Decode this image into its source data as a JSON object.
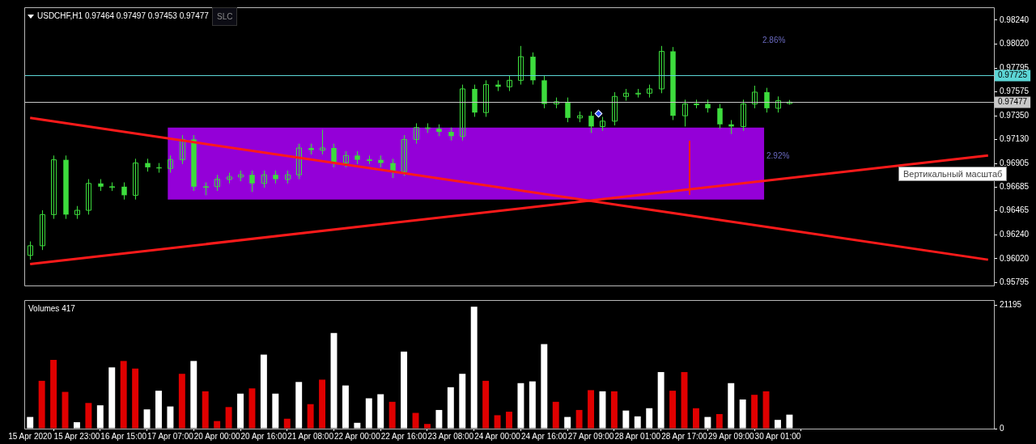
{
  "chart_data": [
    {
      "type": "candlestick",
      "title": "USDCHF,H1  0.97464 0.97497 0.97453 0.97477",
      "color": "#3ddc3d",
      "tick_labels": "y",
      "categories": [
        null,
        null,
        null,
        null,
        null,
        null,
        null,
        null,
        null,
        null,
        null,
        null,
        null,
        null,
        null,
        null,
        null,
        null,
        null,
        null,
        null,
        null,
        null,
        null,
        null,
        null,
        null,
        null,
        null,
        null,
        null,
        null,
        null,
        null,
        null,
        null,
        null,
        null,
        null,
        null,
        null,
        null,
        null,
        null,
        null,
        null,
        null,
        null,
        null,
        null,
        null,
        null,
        null,
        null,
        null,
        null,
        null,
        null,
        null,
        null,
        null,
        null,
        null,
        null,
        null,
        null,
        null,
        null,
        null,
        null,
        null,
        null,
        null,
        null,
        null,
        null,
        null,
        null,
        null,
        null,
        null,
        null,
        null
      ],
      "ohlc": [
        [
          0.9605,
          0.9618,
          0.9601,
          0.9614
        ],
        [
          0.9614,
          0.9647,
          0.961,
          0.9643
        ],
        [
          0.9643,
          0.9698,
          0.9639,
          0.9694
        ],
        [
          0.9694,
          0.9698,
          0.9639,
          0.9643
        ],
        [
          0.9643,
          0.9651,
          0.9639,
          0.9647
        ],
        [
          0.9647,
          0.9676,
          0.9643,
          0.9672
        ],
        [
          0.9672,
          0.9676,
          0.9665,
          0.9669
        ],
        [
          0.9669,
          0.9673,
          0.9665,
          0.9669
        ],
        [
          0.9669,
          0.9673,
          0.9657,
          0.9661
        ],
        [
          0.9661,
          0.9695,
          0.9657,
          0.9691
        ],
        [
          0.9691,
          0.9695,
          0.9683,
          0.9687
        ],
        [
          0.9687,
          0.9691,
          0.9682,
          0.9686
        ],
        [
          0.9686,
          0.9698,
          0.9682,
          0.9694
        ],
        [
          0.9694,
          0.9717,
          0.969,
          0.9713
        ],
        [
          0.9713,
          0.9717,
          0.9665,
          0.9669
        ],
        [
          0.9669,
          0.9673,
          0.9661,
          0.9669
        ],
        [
          0.9669,
          0.968,
          0.9665,
          0.9676
        ],
        [
          0.9676,
          0.9682,
          0.9672,
          0.9678
        ],
        [
          0.9678,
          0.9684,
          0.9674,
          0.968
        ],
        [
          0.968,
          0.9684,
          0.9664,
          0.9672
        ],
        [
          0.9672,
          0.9684,
          0.9668,
          0.968
        ],
        [
          0.968,
          0.9684,
          0.9672,
          0.9676
        ],
        [
          0.9676,
          0.9684,
          0.9672,
          0.968
        ],
        [
          0.968,
          0.9709,
          0.9676,
          0.9705
        ],
        [
          0.9705,
          0.9709,
          0.9699,
          0.9703
        ],
        [
          0.9703,
          0.9722,
          0.9699,
          0.9705
        ],
        [
          0.9705,
          0.9709,
          0.9687,
          0.9691
        ],
        [
          0.9691,
          0.9702,
          0.9687,
          0.9698
        ],
        [
          0.9698,
          0.9702,
          0.969,
          0.9694
        ],
        [
          0.9694,
          0.9698,
          0.969,
          0.9694
        ],
        [
          0.9694,
          0.9698,
          0.9687,
          0.9691
        ],
        [
          0.9691,
          0.9695,
          0.9677,
          0.9683
        ],
        [
          0.9683,
          0.9717,
          0.9679,
          0.9713
        ],
        [
          0.9713,
          0.9728,
          0.9709,
          0.9724
        ],
        [
          0.9724,
          0.9728,
          0.9719,
          0.9723
        ],
        [
          0.9723,
          0.9727,
          0.9716,
          0.972
        ],
        [
          0.972,
          0.9724,
          0.9712,
          0.9716
        ],
        [
          0.9716,
          0.9764,
          0.9712,
          0.976
        ],
        [
          0.976,
          0.9764,
          0.9734,
          0.9738
        ],
        [
          0.9738,
          0.9768,
          0.9734,
          0.9764
        ],
        [
          0.9764,
          0.9768,
          0.9758,
          0.9762
        ],
        [
          0.9762,
          0.9772,
          0.9758,
          0.9768
        ],
        [
          0.9768,
          0.98,
          0.9764,
          0.979
        ],
        [
          0.979,
          0.9794,
          0.9764,
          0.9768
        ],
        [
          0.9768,
          0.9772,
          0.9742,
          0.9746
        ],
        [
          0.9746,
          0.9752,
          0.9742,
          0.9748
        ],
        [
          0.9748,
          0.9752,
          0.9729,
          0.9733
        ],
        [
          0.9733,
          0.9739,
          0.9729,
          0.9735
        ],
        [
          0.9735,
          0.9739,
          0.9719,
          0.9725
        ],
        [
          0.9725,
          0.9734,
          0.9721,
          0.973
        ],
        [
          0.973,
          0.9757,
          0.9726,
          0.9753
        ],
        [
          0.9753,
          0.976,
          0.9749,
          0.9756
        ],
        [
          0.9756,
          0.976,
          0.9752,
          0.9756
        ],
        [
          0.9756,
          0.9764,
          0.9752,
          0.976
        ],
        [
          0.976,
          0.98,
          0.9756,
          0.9795
        ],
        [
          0.9795,
          0.9799,
          0.9731,
          0.9735
        ],
        [
          0.9735,
          0.975,
          0.9725,
          0.9746
        ],
        [
          0.9746,
          0.975,
          0.9742,
          0.9746
        ],
        [
          0.9746,
          0.975,
          0.9738,
          0.9742
        ],
        [
          0.9742,
          0.9746,
          0.9723,
          0.9727
        ],
        [
          0.9727,
          0.9731,
          0.9718,
          0.9725
        ],
        [
          0.9725,
          0.975,
          0.9721,
          0.9746
        ],
        [
          0.9746,
          0.9763,
          0.9742,
          0.9757
        ],
        [
          0.9757,
          0.9761,
          0.9738,
          0.9742
        ],
        [
          0.9742,
          0.9753,
          0.9738,
          0.9749
        ],
        [
          0.97464,
          0.97497,
          0.97453,
          0.97477
        ],
        null,
        null,
        null,
        null,
        null,
        null,
        null,
        null,
        null,
        null,
        null,
        null,
        null,
        null,
        null,
        null,
        null
      ],
      "series": [
        {
          "type": "line",
          "color": "#ff1a1a",
          "values": [
            0.9733,
            null,
            null,
            null,
            null,
            null,
            null,
            null,
            null,
            null,
            null,
            null,
            null,
            null,
            null,
            null,
            null,
            null,
            null,
            null,
            null,
            null,
            null,
            null,
            null,
            null,
            null,
            null,
            null,
            null,
            null,
            null,
            null,
            null,
            null,
            null,
            null,
            null,
            null,
            null,
            null,
            null,
            null,
            null,
            null,
            null,
            null,
            null,
            null,
            null,
            null,
            null,
            null,
            null,
            null,
            null,
            null,
            null,
            null,
            null,
            null,
            null,
            null,
            null,
            null,
            null,
            null,
            null,
            null,
            null,
            null,
            null,
            null,
            null,
            null,
            null,
            null,
            null,
            null,
            null,
            null,
            null,
            0.9601
          ]
        },
        {
          "type": "line",
          "color": "#ff1a1a",
          "values": [
            0.9597,
            null,
            null,
            null,
            null,
            null,
            null,
            null,
            null,
            null,
            null,
            null,
            null,
            null,
            null,
            null,
            null,
            null,
            null,
            null,
            null,
            null,
            null,
            null,
            null,
            null,
            null,
            null,
            null,
            null,
            null,
            null,
            null,
            null,
            null,
            null,
            null,
            null,
            null,
            null,
            null,
            null,
            null,
            null,
            null,
            null,
            null,
            null,
            null,
            null,
            null,
            null,
            null,
            null,
            null,
            null,
            null,
            null,
            null,
            null,
            null,
            null,
            null,
            null,
            null,
            null,
            null,
            null,
            null,
            null,
            null,
            null,
            null,
            null,
            null,
            null,
            null,
            null,
            null,
            null,
            null,
            null,
            0.9698
          ]
        }
      ],
      "ylim": [
        0.9577,
        0.9836
      ],
      "yticks": [
        {
          "value": 0.9824,
          "label": "0.98240"
        },
        {
          "value": 0.9802,
          "label": "0.98020"
        },
        0.97795,
        0.97575,
        {
          "value": 0.9735,
          "label": "0.97350"
        },
        {
          "value": 0.9713,
          "label": "0.97130"
        },
        0.96905,
        0.96685,
        0.96465,
        {
          "value": 0.9624,
          "label": "0.96240"
        },
        {
          "value": 0.9602,
          "label": "0.96020"
        },
        0.95795
      ],
      "ref_lines": [
        {
          "axis": "y",
          "value": 0.97725,
          "label": "0.97725",
          "color": "#5cd6d6"
        },
        {
          "axis": "y",
          "value": 0.97477,
          "label": "0.97477",
          "color": "#c8c8c8"
        }
      ],
      "bands": [
        {
          "axis": "y",
          "from": 0.9657,
          "to": 0.9724,
          "color": "#9400d8"
        }
      ],
      "annotations": [
        "SLC",
        "Вертикальный масштаб",
        "2.86%",
        "2.92%"
      ]
    },
    {
      "type": "bar",
      "title": "Volumes 417",
      "categories": [
        "15 Apr 2020",
        null,
        null,
        null,
        "15 Apr 23:00",
        null,
        null,
        null,
        "16 Apr 15:00",
        null,
        null,
        null,
        "17 Apr 07:00",
        null,
        null,
        null,
        "20 Apr 00:00",
        null,
        null,
        null,
        "20 Apr 16:00",
        null,
        null,
        null,
        "21 Apr 08:00",
        null,
        null,
        null,
        "22 Apr 00:00",
        null,
        null,
        null,
        "22 Apr 16:00",
        null,
        null,
        null,
        "23 Apr 08:00",
        null,
        null,
        null,
        "24 Apr 00:00",
        null,
        null,
        null,
        "24 Apr 16:00",
        null,
        null,
        null,
        "27 Apr 09:00",
        null,
        null,
        null,
        "28 Apr 01:00",
        null,
        null,
        null,
        "28 Apr 17:00",
        null,
        null,
        null,
        "29 Apr 09:00",
        null,
        null,
        null,
        "30 Apr 01:00",
        null,
        null,
        null,
        null,
        null,
        null,
        null,
        null,
        null,
        null,
        null,
        null,
        null,
        null,
        null,
        null,
        null,
        null
      ],
      "values": [
        2000,
        8200,
        11800,
        6300,
        1100,
        4400,
        4000,
        10500,
        11600,
        10300,
        3300,
        6500,
        3800,
        9400,
        11600,
        6400,
        1300,
        3700,
        6000,
        6900,
        12700,
        6000,
        1700,
        8000,
        4200,
        8400,
        16400,
        7400,
        1000,
        5200,
        5900,
        4600,
        13200,
        2700,
        800,
        3200,
        7100,
        9400,
        20900,
        8200,
        2300,
        2900,
        7800,
        8100,
        14500,
        4600,
        2000,
        3200,
        6600,
        6400,
        6400,
        3100,
        2100,
        3500,
        9700,
        6500,
        9700,
        3500,
        2000,
        2500,
        7800,
        5000,
        5800,
        6400,
        1500,
        2400,
        null,
        null,
        null,
        null,
        null,
        null,
        null,
        null,
        null,
        null,
        null,
        null,
        null,
        null,
        null,
        null,
        null
      ],
      "colors": [
        "#ffffff",
        "#e00000",
        "#e00000",
        "#e00000",
        "#ffffff",
        "#e00000",
        "#ffffff",
        "#ffffff",
        "#e00000",
        "#e00000",
        "#ffffff",
        "#ffffff",
        "#ffffff",
        "#e00000",
        "#ffffff",
        "#e00000",
        "#e00000",
        "#e00000",
        "#ffffff",
        "#e00000",
        "#ffffff",
        "#ffffff",
        "#e00000",
        "#ffffff",
        "#e00000",
        "#e00000",
        "#ffffff",
        "#ffffff",
        "#ffffff",
        "#ffffff",
        "#ffffff",
        "#e00000",
        "#ffffff",
        "#e00000",
        "#e00000",
        "#ffffff",
        "#ffffff",
        "#ffffff",
        "#ffffff",
        "#e00000",
        "#e00000",
        "#e00000",
        "#ffffff",
        "#ffffff",
        "#ffffff",
        "#e00000",
        "#ffffff",
        "#e00000",
        "#e00000",
        "#ffffff",
        "#e00000",
        "#ffffff",
        "#ffffff",
        "#ffffff",
        "#ffffff",
        "#e00000",
        "#e00000",
        "#e00000",
        "#ffffff",
        "#e00000",
        "#ffffff",
        "#ffffff",
        "#e00000",
        "#e00000",
        "#ffffff",
        "#ffffff",
        null,
        null,
        null,
        null,
        null,
        null,
        null,
        null,
        null,
        null,
        null,
        null,
        null,
        null,
        null,
        null,
        null
      ],
      "ylim": [
        0,
        22050
      ],
      "yticks": [
        0,
        21195
      ]
    }
  ]
}
